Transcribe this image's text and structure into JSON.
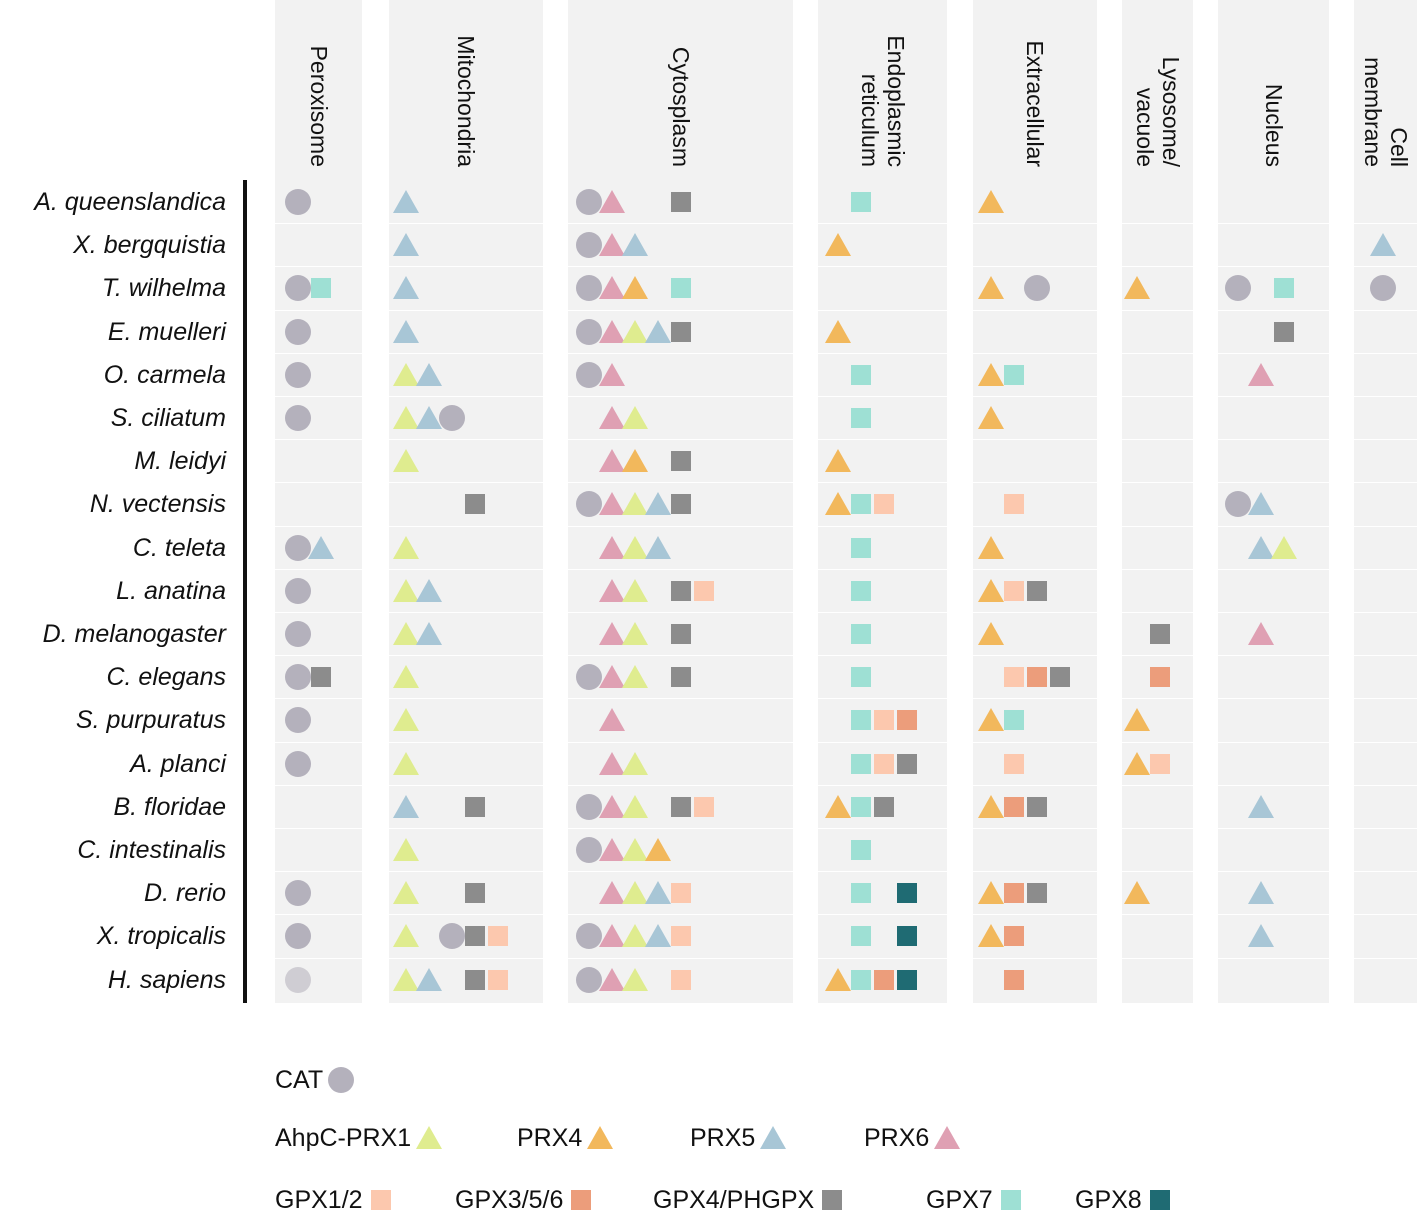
{
  "colors": {
    "CAT": "#b4b1bc",
    "AhpC-PRX1": "#dfec8f",
    "PRX4": "#f2b85c",
    "PRX5": "#a8c6d6",
    "PRX6": "#dfa0b3",
    "GPX1/2": "#fcc8ae",
    "GPX3/5/6": "#ec9d7b",
    "GPX4/PHGPX": "#8c8c8c",
    "GPX7": "#9ee0d4",
    "GPX8": "#1f6b73",
    "CAT_light": "#cfcdd3"
  },
  "shapes": {
    "CAT": "circle",
    "CAT_light": "circle",
    "AhpC-PRX1": "triangle",
    "PRX4": "triangle",
    "PRX5": "triangle",
    "PRX6": "triangle",
    "GPX1/2": "square",
    "GPX3/5/6": "square",
    "GPX4/PHGPX": "square",
    "GPX7": "square",
    "GPX8": "square"
  },
  "columns": [
    {
      "id": "peroxisome",
      "label": [
        "Peroxisome"
      ]
    },
    {
      "id": "mitochondria",
      "label": [
        "Mitochondria"
      ]
    },
    {
      "id": "cytosplasm",
      "label": [
        "Cytosplasm"
      ]
    },
    {
      "id": "er",
      "label": [
        "Endoplasmic",
        "reticulum"
      ]
    },
    {
      "id": "extracellular",
      "label": [
        "Extracellular"
      ]
    },
    {
      "id": "lysosome",
      "label": [
        "Lysosome/",
        "vacuole"
      ]
    },
    {
      "id": "nucleus",
      "label": [
        "Nucleus"
      ]
    },
    {
      "id": "cell_membrane",
      "label": [
        "Cell",
        "membrane"
      ]
    }
  ],
  "species": [
    "A. queenslandica",
    "X. bergquistia",
    "T. wilhelma",
    "E. muelleri",
    "O. carmela",
    "S. ciliatum",
    "M. leidyi",
    "N. vectensis",
    "C. teleta",
    "L. anatina",
    "D. melanogaster",
    "C. elegans",
    "S. purpuratus",
    "A. planci",
    "B. floridae",
    "C. intestinalis",
    "D. rerio",
    "X. tropicalis",
    "H. sapiens"
  ],
  "matrix": [
    [
      [
        [
          "CAT",
          0
        ]
      ],
      [
        [
          "PRX5",
          0
        ]
      ],
      [
        [
          "CAT",
          0
        ],
        [
          "PRX6",
          1
        ],
        [
          "GPX4/PHGPX",
          4
        ]
      ],
      [
        [
          "GPX7",
          1
        ]
      ],
      [
        [
          "PRX4",
          0
        ]
      ],
      [],
      [],
      []
    ],
    [
      [],
      [
        [
          "PRX5",
          0
        ]
      ],
      [
        [
          "CAT",
          0
        ],
        [
          "PRX6",
          1
        ],
        [
          "PRX5",
          2
        ]
      ],
      [
        [
          "PRX4",
          0
        ]
      ],
      [],
      [],
      [],
      [
        [
          "PRX5",
          0
        ]
      ]
    ],
    [
      [
        [
          "CAT",
          0
        ],
        [
          "GPX7",
          1
        ]
      ],
      [
        [
          "PRX5",
          0
        ]
      ],
      [
        [
          "CAT",
          0
        ],
        [
          "PRX6",
          1
        ],
        [
          "PRX4",
          2
        ],
        [
          "GPX7",
          4
        ]
      ],
      [],
      [
        [
          "PRX4",
          0
        ],
        [
          "CAT",
          2
        ]
      ],
      [
        [
          "PRX4",
          0
        ]
      ],
      [
        [
          "CAT",
          0
        ],
        [
          "GPX7",
          2
        ]
      ],
      [
        [
          "CAT",
          0
        ]
      ]
    ],
    [
      [
        [
          "CAT",
          0
        ]
      ],
      [
        [
          "PRX5",
          0
        ]
      ],
      [
        [
          "CAT",
          0
        ],
        [
          "PRX6",
          1
        ],
        [
          "AhpC-PRX1",
          2
        ],
        [
          "PRX5",
          3
        ],
        [
          "GPX4/PHGPX",
          4
        ]
      ],
      [
        [
          "PRX4",
          0
        ]
      ],
      [],
      [],
      [
        [
          "GPX4/PHGPX",
          2
        ]
      ],
      []
    ],
    [
      [
        [
          "CAT",
          0
        ]
      ],
      [
        [
          "AhpC-PRX1",
          0
        ],
        [
          "PRX5",
          1
        ]
      ],
      [
        [
          "CAT",
          0
        ],
        [
          "PRX6",
          1
        ]
      ],
      [
        [
          "GPX7",
          1
        ]
      ],
      [
        [
          "PRX4",
          0
        ],
        [
          "GPX7",
          1
        ]
      ],
      [],
      [
        [
          "PRX6",
          1
        ]
      ],
      []
    ],
    [
      [
        [
          "CAT",
          0
        ]
      ],
      [
        [
          "AhpC-PRX1",
          0
        ],
        [
          "PRX5",
          1
        ],
        [
          "CAT",
          2
        ]
      ],
      [
        [
          "PRX6",
          1
        ],
        [
          "AhpC-PRX1",
          2
        ]
      ],
      [
        [
          "GPX7",
          1
        ]
      ],
      [
        [
          "PRX4",
          0
        ]
      ],
      [],
      [],
      []
    ],
    [
      [],
      [
        [
          "AhpC-PRX1",
          0
        ]
      ],
      [
        [
          "PRX6",
          1
        ],
        [
          "PRX4",
          2
        ],
        [
          "GPX4/PHGPX",
          4
        ]
      ],
      [
        [
          "PRX4",
          0
        ]
      ],
      [],
      [],
      [],
      []
    ],
    [
      [],
      [
        [
          "GPX4/PHGPX",
          3
        ]
      ],
      [
        [
          "CAT",
          0
        ],
        [
          "PRX6",
          1
        ],
        [
          "AhpC-PRX1",
          2
        ],
        [
          "PRX5",
          3
        ],
        [
          "GPX4/PHGPX",
          4
        ]
      ],
      [
        [
          "PRX4",
          0
        ],
        [
          "GPX7",
          1
        ],
        [
          "GPX1/2",
          2
        ]
      ],
      [
        [
          "GPX1/2",
          1
        ]
      ],
      [],
      [
        [
          "CAT",
          0
        ],
        [
          "PRX5",
          1
        ]
      ],
      []
    ],
    [
      [
        [
          "CAT",
          0
        ],
        [
          "PRX5",
          1
        ]
      ],
      [
        [
          "AhpC-PRX1",
          0
        ]
      ],
      [
        [
          "PRX6",
          1
        ],
        [
          "AhpC-PRX1",
          2
        ],
        [
          "PRX5",
          3
        ]
      ],
      [
        [
          "GPX7",
          1
        ]
      ],
      [
        [
          "PRX4",
          0
        ]
      ],
      [],
      [
        [
          "PRX5",
          1
        ],
        [
          "AhpC-PRX1",
          2
        ]
      ],
      []
    ],
    [
      [
        [
          "CAT",
          0
        ]
      ],
      [
        [
          "AhpC-PRX1",
          0
        ],
        [
          "PRX5",
          1
        ]
      ],
      [
        [
          "PRX6",
          1
        ],
        [
          "AhpC-PRX1",
          2
        ],
        [
          "GPX4/PHGPX",
          4
        ],
        [
          "GPX1/2",
          5
        ]
      ],
      [
        [
          "GPX7",
          1
        ]
      ],
      [
        [
          "PRX4",
          0
        ],
        [
          "GPX1/2",
          1
        ],
        [
          "GPX4/PHGPX",
          2
        ]
      ],
      [],
      [],
      []
    ],
    [
      [
        [
          "CAT",
          0
        ]
      ],
      [
        [
          "AhpC-PRX1",
          0
        ],
        [
          "PRX5",
          1
        ]
      ],
      [
        [
          "PRX6",
          1
        ],
        [
          "AhpC-PRX1",
          2
        ],
        [
          "GPX4/PHGPX",
          4
        ]
      ],
      [
        [
          "GPX7",
          1
        ]
      ],
      [
        [
          "PRX4",
          0
        ]
      ],
      [
        [
          "GPX4/PHGPX",
          1
        ]
      ],
      [
        [
          "PRX6",
          1
        ]
      ],
      []
    ],
    [
      [
        [
          "CAT",
          0
        ],
        [
          "GPX4/PHGPX",
          1
        ]
      ],
      [
        [
          "AhpC-PRX1",
          0
        ]
      ],
      [
        [
          "CAT",
          0
        ],
        [
          "PRX6",
          1
        ],
        [
          "AhpC-PRX1",
          2
        ],
        [
          "GPX4/PHGPX",
          4
        ]
      ],
      [
        [
          "GPX7",
          1
        ]
      ],
      [
        [
          "GPX1/2",
          1
        ],
        [
          "GPX3/5/6",
          2
        ],
        [
          "GPX4/PHGPX",
          3
        ]
      ],
      [
        [
          "GPX3/5/6",
          1
        ]
      ],
      [],
      []
    ],
    [
      [
        [
          "CAT",
          0
        ]
      ],
      [
        [
          "AhpC-PRX1",
          0
        ]
      ],
      [
        [
          "PRX6",
          1
        ]
      ],
      [
        [
          "GPX7",
          1
        ],
        [
          "GPX1/2",
          2
        ],
        [
          "GPX3/5/6",
          3
        ]
      ],
      [
        [
          "PRX4",
          0
        ],
        [
          "GPX7",
          1
        ]
      ],
      [
        [
          "PRX4",
          0
        ]
      ],
      [],
      []
    ],
    [
      [
        [
          "CAT",
          0
        ]
      ],
      [
        [
          "AhpC-PRX1",
          0
        ]
      ],
      [
        [
          "PRX6",
          1
        ],
        [
          "AhpC-PRX1",
          2
        ]
      ],
      [
        [
          "GPX7",
          1
        ],
        [
          "GPX1/2",
          2
        ],
        [
          "GPX4/PHGPX",
          3
        ]
      ],
      [
        [
          "GPX1/2",
          1
        ]
      ],
      [
        [
          "PRX4",
          0
        ],
        [
          "GPX1/2",
          1
        ]
      ],
      [],
      []
    ],
    [
      [],
      [
        [
          "PRX5",
          0
        ],
        [
          "GPX4/PHGPX",
          3
        ]
      ],
      [
        [
          "CAT",
          0
        ],
        [
          "PRX6",
          1
        ],
        [
          "AhpC-PRX1",
          2
        ],
        [
          "GPX4/PHGPX",
          4
        ],
        [
          "GPX1/2",
          5
        ]
      ],
      [
        [
          "PRX4",
          0
        ],
        [
          "GPX7",
          1
        ],
        [
          "GPX4/PHGPX",
          2
        ]
      ],
      [
        [
          "PRX4",
          0
        ],
        [
          "GPX3/5/6",
          1
        ],
        [
          "GPX4/PHGPX",
          2
        ]
      ],
      [],
      [
        [
          "PRX5",
          1
        ]
      ],
      []
    ],
    [
      [],
      [
        [
          "AhpC-PRX1",
          0
        ]
      ],
      [
        [
          "CAT",
          0
        ],
        [
          "PRX6",
          1
        ],
        [
          "AhpC-PRX1",
          2
        ],
        [
          "PRX4",
          3
        ]
      ],
      [
        [
          "GPX7",
          1
        ]
      ],
      [],
      [],
      [],
      []
    ],
    [
      [
        [
          "CAT",
          0
        ]
      ],
      [
        [
          "AhpC-PRX1",
          0
        ],
        [
          "GPX4/PHGPX",
          3
        ]
      ],
      [
        [
          "PRX6",
          1
        ],
        [
          "AhpC-PRX1",
          2
        ],
        [
          "PRX5",
          3
        ],
        [
          "GPX1/2",
          4
        ]
      ],
      [
        [
          "GPX7",
          1
        ],
        [
          "GPX8",
          3
        ]
      ],
      [
        [
          "PRX4",
          0
        ],
        [
          "GPX3/5/6",
          1
        ],
        [
          "GPX4/PHGPX",
          2
        ]
      ],
      [
        [
          "PRX4",
          0
        ]
      ],
      [
        [
          "PRX5",
          1
        ]
      ],
      []
    ],
    [
      [
        [
          "CAT",
          0
        ]
      ],
      [
        [
          "AhpC-PRX1",
          0
        ],
        [
          "CAT",
          2
        ],
        [
          "GPX4/PHGPX",
          3
        ],
        [
          "GPX1/2",
          4
        ]
      ],
      [
        [
          "CAT",
          0
        ],
        [
          "PRX6",
          1
        ],
        [
          "AhpC-PRX1",
          2
        ],
        [
          "PRX5",
          3
        ],
        [
          "GPX1/2",
          4
        ]
      ],
      [
        [
          "GPX7",
          1
        ],
        [
          "GPX8",
          3
        ]
      ],
      [
        [
          "PRX4",
          0
        ],
        [
          "GPX3/5/6",
          1
        ]
      ],
      [],
      [
        [
          "PRX5",
          1
        ]
      ],
      []
    ],
    [
      [
        [
          "CAT_light",
          0
        ]
      ],
      [
        [
          "AhpC-PRX1",
          0
        ],
        [
          "PRX5",
          1
        ],
        [
          "GPX4/PHGPX",
          3
        ],
        [
          "GPX1/2",
          4
        ]
      ],
      [
        [
          "CAT",
          0
        ],
        [
          "PRX6",
          1
        ],
        [
          "AhpC-PRX1",
          2
        ],
        [
          "GPX1/2",
          4
        ]
      ],
      [
        [
          "PRX4",
          0
        ],
        [
          "GPX7",
          1
        ],
        [
          "GPX3/5/6",
          2
        ],
        [
          "GPX8",
          3
        ]
      ],
      [
        [
          "GPX3/5/6",
          1
        ]
      ],
      [],
      [],
      []
    ]
  ],
  "legend": {
    "rows": [
      [
        {
          "label": "CAT",
          "key": "CAT"
        }
      ],
      [
        {
          "label": "AhpC-PRX1",
          "key": "AhpC-PRX1"
        },
        {
          "label": "PRX4",
          "key": "PRX4"
        },
        {
          "label": "PRX5",
          "key": "PRX5"
        },
        {
          "label": "PRX6",
          "key": "PRX6"
        }
      ],
      [
        {
          "label": "GPX1/2",
          "key": "GPX1/2"
        },
        {
          "label": "GPX3/5/6",
          "key": "GPX3/5/6"
        },
        {
          "label": "GPX4/PHGPX",
          "key": "GPX4/PHGPX"
        },
        {
          "label": "GPX7",
          "key": "GPX7"
        },
        {
          "label": "GPX8",
          "key": "GPX8"
        }
      ]
    ]
  }
}
